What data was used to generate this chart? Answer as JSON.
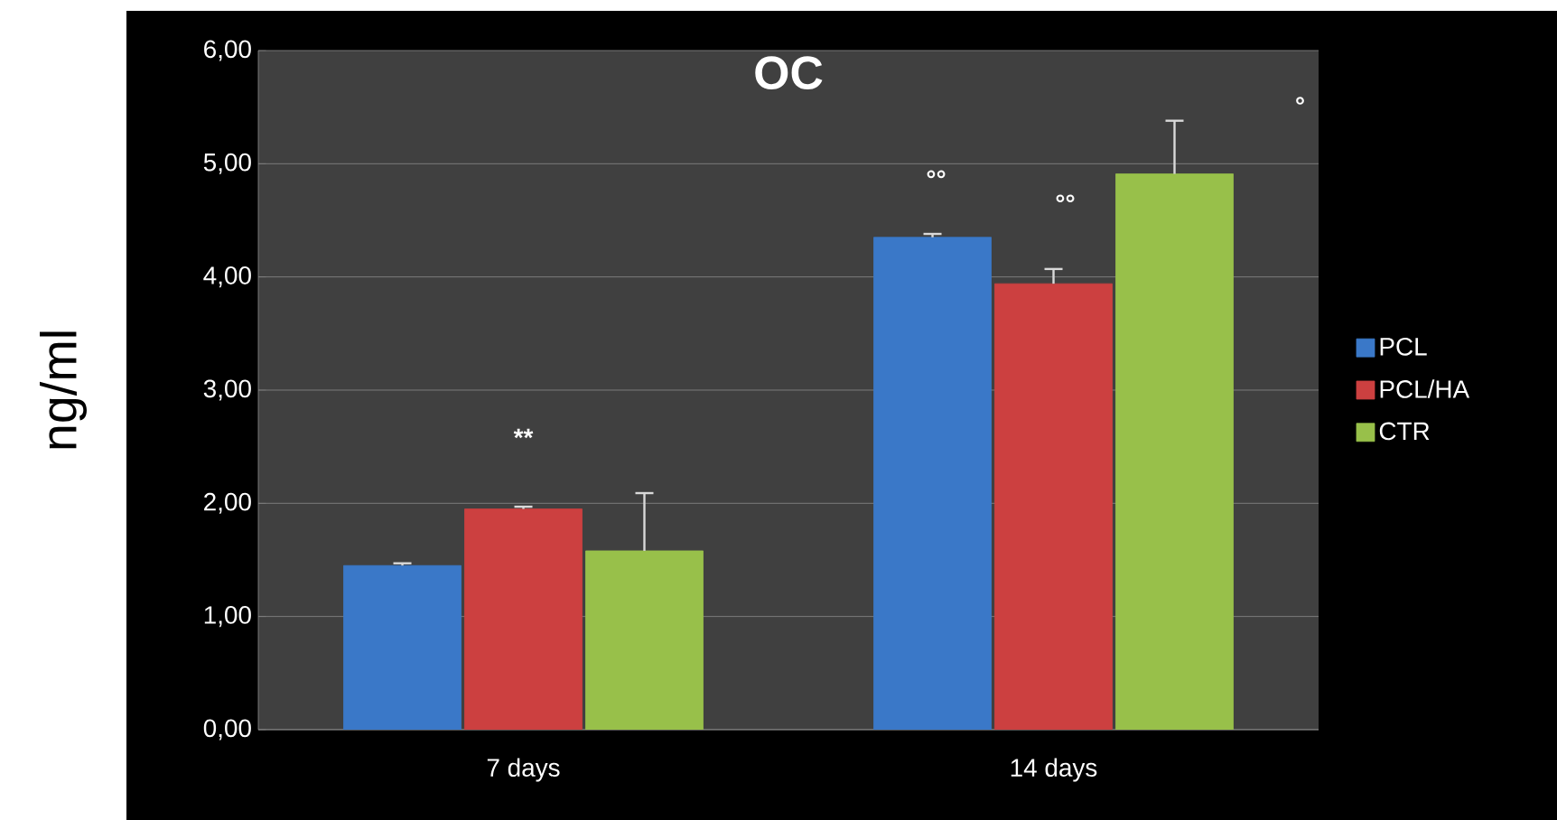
{
  "chart_data": {
    "type": "bar",
    "title": "OC",
    "ylabel": "ng/ml",
    "categories": [
      "7 days",
      "14 days"
    ],
    "series": [
      {
        "name": "PCL",
        "color": "#3a78c8",
        "values": [
          1.45,
          4.35
        ],
        "errors": [
          0.02,
          0.03
        ]
      },
      {
        "name": "PCL/HA",
        "color": "#cc4040",
        "values": [
          1.95,
          3.94
        ],
        "errors": [
          0.02,
          0.13
        ]
      },
      {
        "name": "CTR",
        "color": "#98c04a",
        "values": [
          1.58,
          4.91
        ],
        "errors": [
          0.51,
          0.47
        ]
      }
    ],
    "ylim": [
      0,
      6
    ],
    "yticks": [
      {
        "value": 0,
        "label": "0,00"
      },
      {
        "value": 1,
        "label": "1,00"
      },
      {
        "value": 2,
        "label": "2,00"
      },
      {
        "value": 3,
        "label": "3,00"
      },
      {
        "value": 4,
        "label": "4,00"
      },
      {
        "value": 5,
        "label": "5,00"
      },
      {
        "value": 6,
        "label": "6,00"
      }
    ],
    "grid": "y",
    "legend": "right",
    "annotations": [
      "**",
      "°°",
      "°°",
      "°"
    ]
  }
}
